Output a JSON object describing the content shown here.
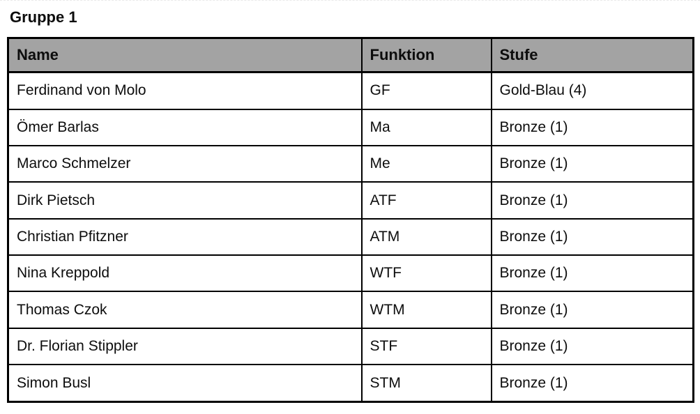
{
  "page": {
    "title": "Gruppe 1"
  },
  "table": {
    "headers": [
      "Name",
      "Funktion",
      "Stufe"
    ],
    "rows": [
      [
        "Ferdinand von Molo",
        "GF",
        "Gold-Blau (4)"
      ],
      [
        "Ömer Barlas",
        "Ma",
        "Bronze (1)"
      ],
      [
        "Marco Schmelzer",
        "Me",
        "Bronze (1)"
      ],
      [
        "Dirk Pietsch",
        "ATF",
        "Bronze (1)"
      ],
      [
        "Christian Pfitzner",
        "ATM",
        "Bronze (1)"
      ],
      [
        "Nina Kreppold",
        "WTF",
        "Bronze (1)"
      ],
      [
        "Thomas Czok",
        "WTM",
        "Bronze (1)"
      ],
      [
        "Dr. Florian Stippler",
        "STF",
        "Bronze (1)"
      ],
      [
        "Simon Busl",
        "STM",
        "Bronze (1)"
      ]
    ],
    "colors": {
      "header_bg": "#a3a3a3",
      "border": "#000000",
      "text": "#0d0d0d"
    }
  }
}
